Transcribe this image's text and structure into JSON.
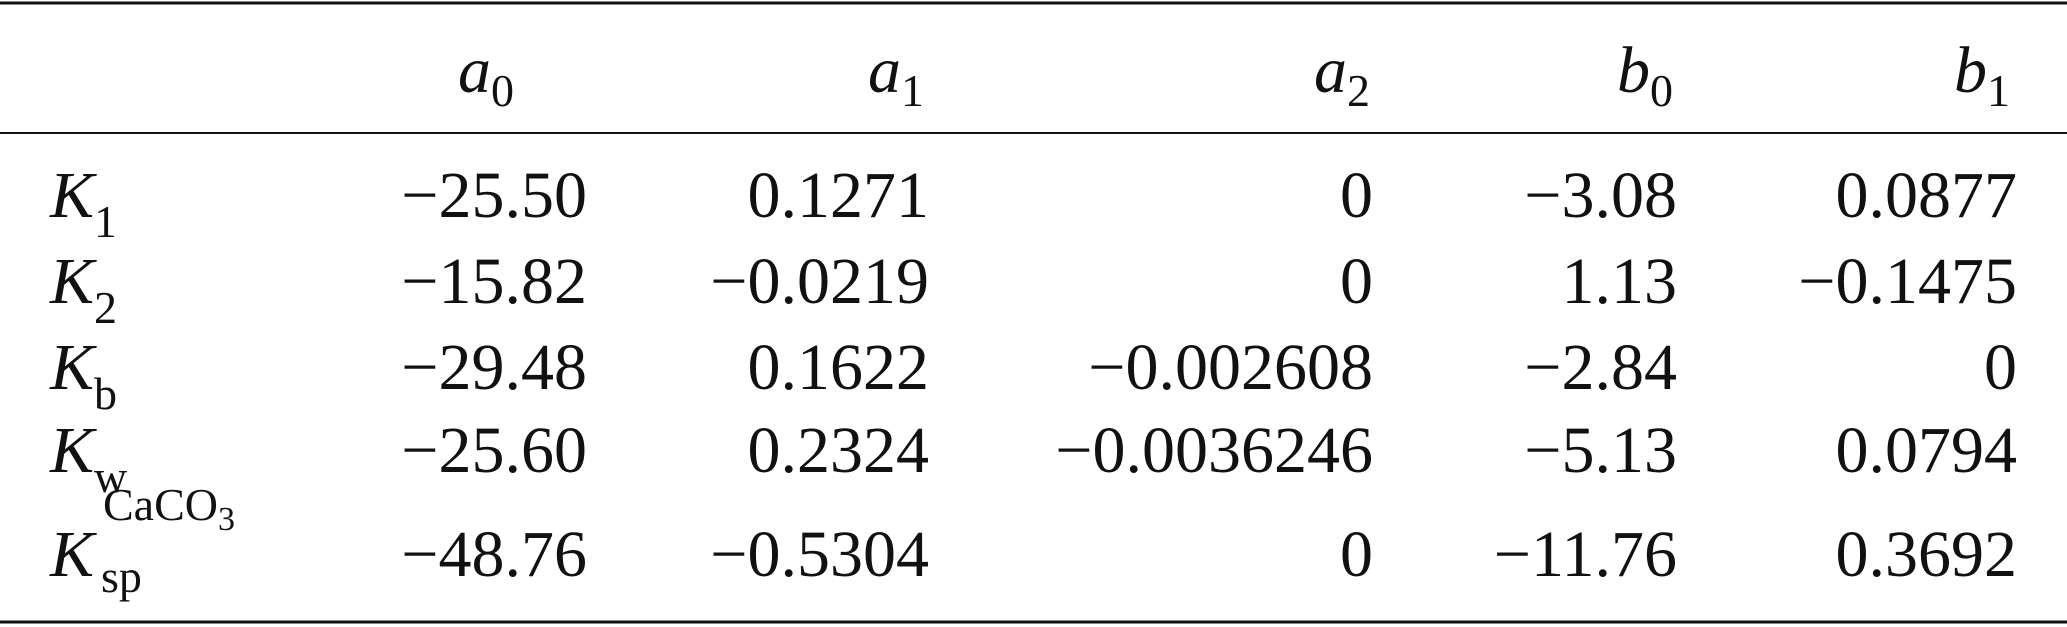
{
  "table": {
    "header": [
      {
        "base": "a",
        "sub": "0"
      },
      {
        "base": "a",
        "sub": "1"
      },
      {
        "base": "a",
        "sub": "2"
      },
      {
        "base": "b",
        "sub": "0"
      },
      {
        "base": "b",
        "sub": "1"
      }
    ],
    "rows": [
      {
        "label": {
          "base": "K",
          "sub": "1"
        },
        "cells": [
          "−25.50",
          "0.1271",
          "0",
          "−3.08",
          "0.0877"
        ]
      },
      {
        "label": {
          "base": "K",
          "sub": "2"
        },
        "cells": [
          "−15.82",
          "−0.0219",
          "0",
          "1.13",
          "−0.1475"
        ]
      },
      {
        "label": {
          "base": "K",
          "sub": "b"
        },
        "cells": [
          "−29.48",
          "0.1622",
          "−0.002608",
          "−2.84",
          "0"
        ]
      },
      {
        "label": {
          "base": "K",
          "sub": "w"
        },
        "cells": [
          "−25.60",
          "0.2324",
          "−0.0036246",
          "−5.13",
          "0.0794"
        ]
      },
      {
        "label": {
          "base": "K",
          "sub": "sp",
          "sup": "CaCO",
          "sup_sub": "3"
        },
        "cells": [
          "−48.76",
          "−0.5304",
          "0",
          "−11.76",
          "0.3692"
        ]
      }
    ]
  }
}
